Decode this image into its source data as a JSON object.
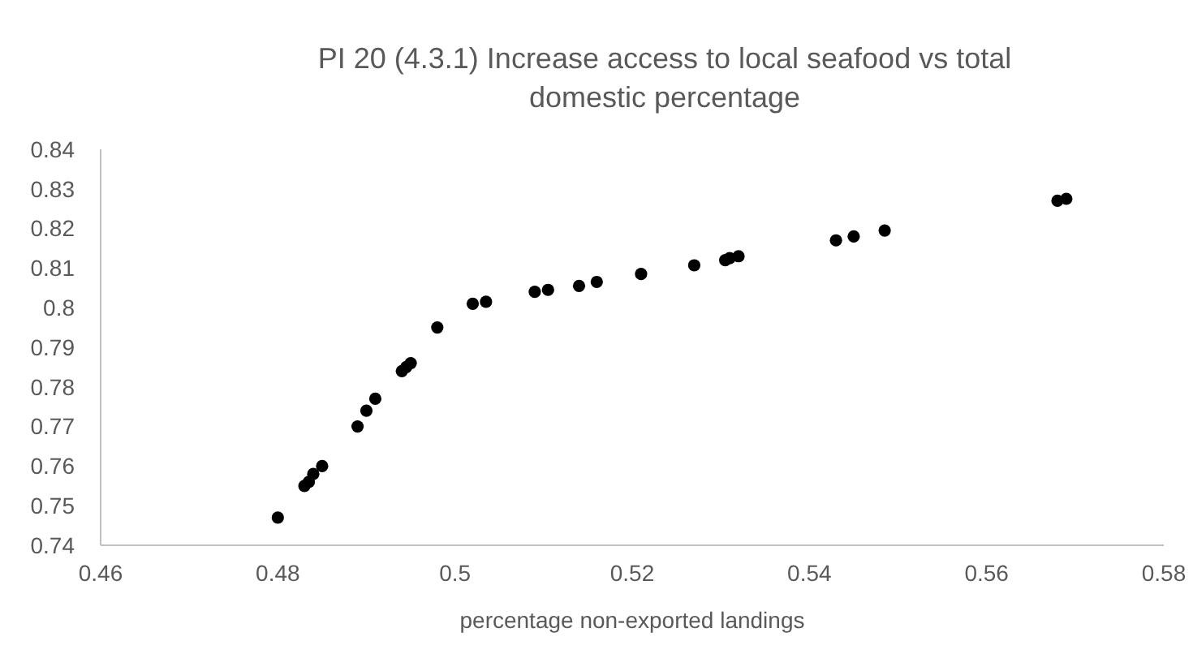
{
  "chart_data": {
    "type": "scatter",
    "title": "PI 20 (4.3.1) Increase access to local seafood vs total domestic percentage",
    "xlabel": "percentage non-exported landings",
    "x": [
      0.48,
      0.483,
      0.4835,
      0.484,
      0.485,
      0.489,
      0.49,
      0.491,
      0.494,
      0.4945,
      0.495,
      0.498,
      0.502,
      0.503,
      0.5035,
      0.509,
      0.5105,
      0.514,
      0.516,
      0.521,
      0.5265,
      0.527,
      0.5305,
      0.531,
      0.532,
      0.543,
      0.545,
      0.5485,
      0.568,
      0.569
    ],
    "values": [
      0.747,
      0.755,
      0.756,
      0.758,
      0.76,
      0.77,
      0.774,
      0.777,
      0.784,
      0.785,
      0.786,
      0.795,
      0.801,
      null,
      0.8015,
      0.804,
      0.8045,
      0.8055,
      0.8065,
      0.8085,
      null,
      0.8107,
      0.812,
      0.8125,
      0.813,
      0.817,
      0.818,
      0.8195,
      0.827,
      0.8275
    ],
    "color": "#000000",
    "marker": "circle",
    "grid": false,
    "xlim": [
      0.46,
      0.58
    ],
    "xticks": [
      {
        "value": 0.46,
        "label": "0.46"
      },
      {
        "value": 0.48,
        "label": "0.48"
      },
      {
        "value": 0.5,
        "label": "0.5"
      },
      {
        "value": 0.52,
        "label": "0.52"
      },
      {
        "value": 0.54,
        "label": "0.54"
      },
      {
        "value": 0.56,
        "label": "0.56"
      },
      {
        "value": 0.58,
        "label": "0.58"
      }
    ],
    "ylim": [
      0.74,
      0.84
    ],
    "yticks": [
      {
        "value": 0.74,
        "label": "0.74"
      },
      {
        "value": 0.75,
        "label": "0.75"
      },
      {
        "value": 0.76,
        "label": "0.76"
      },
      {
        "value": 0.77,
        "label": "0.77"
      },
      {
        "value": 0.78,
        "label": "0.78"
      },
      {
        "value": 0.79,
        "label": "0.79"
      },
      {
        "value": 0.8,
        "label": "0.8"
      },
      {
        "value": 0.81,
        "label": "0.81"
      },
      {
        "value": 0.82,
        "label": "0.82"
      },
      {
        "value": 0.83,
        "label": "0.83"
      },
      {
        "value": 0.84,
        "label": "0.84"
      }
    ]
  }
}
